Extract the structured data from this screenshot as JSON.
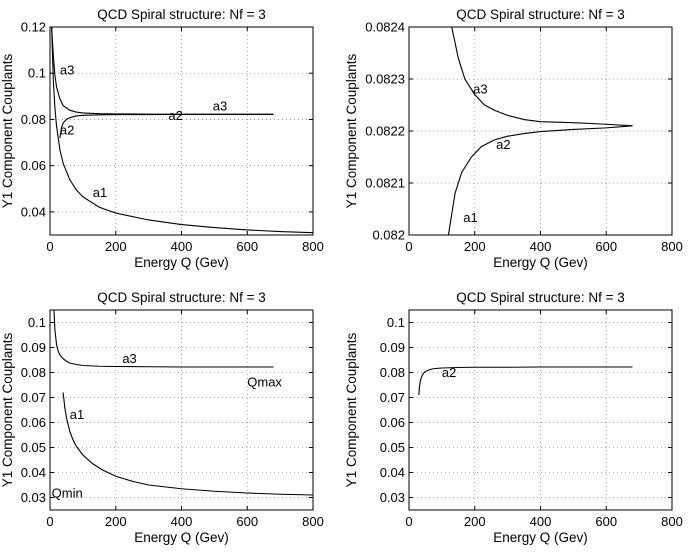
{
  "chart_data": [
    {
      "type": "line",
      "title": "QCD Spiral structure: Nf = 3",
      "xlabel": "Energy Q (Gev)",
      "ylabel": "Y1 Component Couplants",
      "xlim": [
        0,
        800
      ],
      "ylim": [
        0.03,
        0.12
      ],
      "xticks": [
        "0",
        "200",
        "400",
        "600",
        "800"
      ],
      "yticks": [
        "0.04",
        "0.06",
        "0.08",
        "0.1",
        "0.12"
      ],
      "grid": true,
      "series": [
        {
          "name": "a3",
          "x": [
            5,
            10,
            15,
            20,
            30,
            40,
            60,
            80,
            100,
            150,
            200,
            300,
            400,
            500,
            600,
            680
          ],
          "y": [
            0.12,
            0.108,
            0.099,
            0.094,
            0.089,
            0.086,
            0.084,
            0.0832,
            0.0828,
            0.0825,
            0.0824,
            0.0823,
            0.0822,
            0.0822,
            0.0822,
            0.0822
          ]
        },
        {
          "name": "a2",
          "x": [
            30,
            35,
            40,
            50,
            60,
            80,
            100,
            150,
            200,
            300,
            400,
            500,
            600,
            680
          ],
          "y": [
            0.072,
            0.0765,
            0.0785,
            0.08,
            0.0808,
            0.0815,
            0.0818,
            0.082,
            0.0821,
            0.0821,
            0.0822,
            0.0822,
            0.0822,
            0.0822
          ]
        },
        {
          "name": "a1",
          "x": [
            5,
            10,
            15,
            20,
            30,
            40,
            60,
            80,
            100,
            150,
            200,
            300,
            400,
            500,
            600,
            700,
            800
          ],
          "y": [
            0.12,
            0.097,
            0.085,
            0.077,
            0.067,
            0.061,
            0.054,
            0.0495,
            0.0465,
            0.042,
            0.0395,
            0.0365,
            0.0345,
            0.0332,
            0.0322,
            0.0315,
            0.031
          ]
        }
      ],
      "annotations": [
        {
          "text": "a3",
          "x": 30,
          "y": 0.0995
        },
        {
          "text": "a3",
          "x": 495,
          "y": 0.0838
        },
        {
          "text": "a2",
          "x": 360,
          "y": 0.0798
        },
        {
          "text": "a2",
          "x": 30,
          "y": 0.0735
        },
        {
          "text": "a1",
          "x": 130,
          "y": 0.0465
        }
      ]
    },
    {
      "type": "line",
      "title": "QCD Spiral structure: Nf = 3",
      "xlabel": "Energy Q (Gev)",
      "ylabel": "Y1 Component Couplants",
      "xlim": [
        0,
        800
      ],
      "ylim": [
        0.082,
        0.0824
      ],
      "xticks": [
        "0",
        "200",
        "400",
        "600",
        "800"
      ],
      "yticks": [
        "0.082",
        "0.0821",
        "0.0822",
        "0.0823",
        "0.0824"
      ],
      "grid": true,
      "series": [
        {
          "name": "a3",
          "x": [
            130,
            150,
            170,
            200,
            230,
            260,
            300,
            350,
            400,
            500,
            600,
            680
          ],
          "y": [
            0.0824,
            0.08234,
            0.0823,
            0.08227,
            0.08225,
            0.08224,
            0.08223,
            0.082222,
            0.082218,
            0.082216,
            0.082213,
            0.08221
          ]
        },
        {
          "name": "a2",
          "x": [
            120,
            140,
            160,
            190,
            220,
            260,
            300,
            350,
            400,
            500,
            600,
            680
          ],
          "y": [
            0.082,
            0.08208,
            0.08212,
            0.08215,
            0.08217,
            0.082183,
            0.08219,
            0.082195,
            0.082199,
            0.082203,
            0.082206,
            0.08221
          ]
        }
      ],
      "annotations": [
        {
          "text": "a3",
          "x": 195,
          "y": 0.082272
        },
        {
          "text": "a2",
          "x": 265,
          "y": 0.082165
        },
        {
          "text": "a1",
          "x": 165,
          "y": 0.082025
        }
      ]
    },
    {
      "type": "line",
      "title": "QCD Spiral structure: Nf = 3",
      "xlabel": "Energy Q (Gev)",
      "ylabel": "Y1 Component Couplants",
      "xlim": [
        0,
        800
      ],
      "ylim": [
        0.025,
        0.105
      ],
      "xticks": [
        "0",
        "200",
        "400",
        "600",
        "800"
      ],
      "yticks": [
        "0.03",
        "0.04",
        "0.05",
        "0.06",
        "0.07",
        "0.08",
        "0.09",
        "0.1"
      ],
      "grid": true,
      "series": [
        {
          "name": "a3",
          "x": [
            12,
            15,
            20,
            25,
            30,
            40,
            50,
            60,
            80,
            100,
            150,
            200,
            300,
            400,
            500,
            600,
            680
          ],
          "y": [
            0.105,
            0.097,
            0.091,
            0.0885,
            0.087,
            0.0855,
            0.0845,
            0.0838,
            0.0832,
            0.0828,
            0.0825,
            0.0824,
            0.0823,
            0.0822,
            0.0822,
            0.0822,
            0.0822
          ]
        },
        {
          "name": "a1",
          "x": [
            40,
            45,
            50,
            60,
            70,
            80,
            100,
            130,
            160,
            200,
            250,
            300,
            400,
            500,
            600,
            700,
            800
          ],
          "y": [
            0.072,
            0.066,
            0.062,
            0.0565,
            0.053,
            0.0505,
            0.047,
            0.0435,
            0.041,
            0.0385,
            0.0365,
            0.035,
            0.0335,
            0.0325,
            0.0318,
            0.0313,
            0.031
          ]
        }
      ],
      "annotations": [
        {
          "text": "a3",
          "x": 220,
          "y": 0.0838
        },
        {
          "text": "a1",
          "x": 60,
          "y": 0.0615
        },
        {
          "text": "Qmax",
          "x": 600,
          "y": 0.0745
        },
        {
          "text": "Qmin",
          "x": 5,
          "y": 0.03
        }
      ]
    },
    {
      "type": "line",
      "title": "QCD Spiral structure: Nf = 3",
      "xlabel": "Energy Q (Gev)",
      "ylabel": "Y1 Component Couplants",
      "xlim": [
        0,
        800
      ],
      "ylim": [
        0.025,
        0.105
      ],
      "xticks": [
        "0",
        "200",
        "400",
        "600",
        "800"
      ],
      "yticks": [
        "0.03",
        "0.04",
        "0.05",
        "0.06",
        "0.07",
        "0.08",
        "0.09",
        "0.1"
      ],
      "grid": true,
      "series": [
        {
          "name": "a2",
          "x": [
            30,
            32,
            35,
            40,
            45,
            50,
            60,
            70,
            80,
            100,
            150,
            200,
            300,
            400,
            500,
            600,
            680
          ],
          "y": [
            0.071,
            0.0745,
            0.077,
            0.0788,
            0.0798,
            0.0804,
            0.081,
            0.0814,
            0.0816,
            0.0818,
            0.082,
            0.0821,
            0.0821,
            0.0822,
            0.0822,
            0.0822,
            0.0822
          ]
        }
      ],
      "annotations": [
        {
          "text": "a2",
          "x": 100,
          "y": 0.0783
        }
      ]
    }
  ]
}
